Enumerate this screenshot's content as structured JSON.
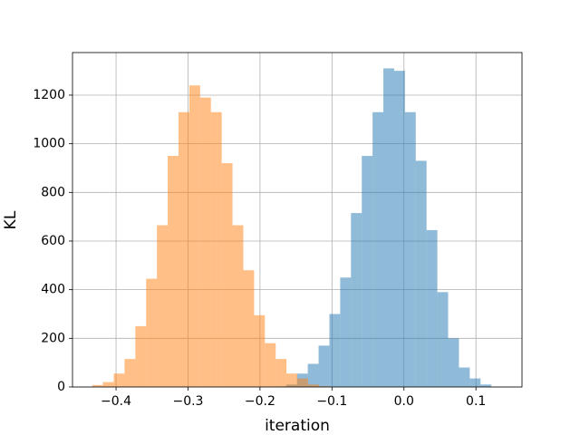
{
  "chart_data": {
    "type": "histogram",
    "xlabel": "iteration",
    "ylabel": "KL",
    "xlim": [
      -0.4605,
      0.164
    ],
    "ylim": [
      0,
      1375
    ],
    "xticks": [
      {
        "value": -0.4,
        "label": "−0.4"
      },
      {
        "value": -0.3,
        "label": "−0.3"
      },
      {
        "value": -0.2,
        "label": "−0.2"
      },
      {
        "value": -0.1,
        "label": "−0.1"
      },
      {
        "value": 0,
        "label": "0.0"
      },
      0.1
    ],
    "yticks": [
      0,
      200,
      400,
      600,
      800,
      1000,
      1200
    ],
    "grid": true,
    "opacity": 0.5,
    "series": [
      {
        "color": "#1f77b4",
        "bins": [
          -0.1786,
          -0.1636,
          -0.1486,
          -0.1336,
          -0.1186,
          -0.1036,
          -0.0886,
          -0.0736,
          -0.0586,
          -0.0436,
          -0.0286,
          -0.0136,
          0.0014,
          0.0164,
          0.0314,
          0.0464,
          0.0614,
          0.0764,
          0.0914,
          0.1064,
          0.1214
        ],
        "values": [
          2,
          10,
          55,
          95,
          170,
          300,
          450,
          715,
          950,
          1130,
          1310,
          1300,
          1130,
          930,
          645,
          390,
          200,
          80,
          35,
          10
        ]
      },
      {
        "color": "#ff7f0e",
        "bins": [
          -0.4332,
          -0.4182,
          -0.4032,
          -0.3882,
          -0.3732,
          -0.3582,
          -0.3432,
          -0.3282,
          -0.3132,
          -0.2982,
          -0.2832,
          -0.2682,
          -0.2532,
          -0.2382,
          -0.2232,
          -0.2082,
          -0.1932,
          -0.1782,
          -0.1632,
          -0.1482,
          -0.1332,
          -0.1182,
          -0.1032
        ],
        "values": [
          8,
          20,
          55,
          115,
          250,
          445,
          665,
          950,
          1130,
          1240,
          1190,
          1130,
          920,
          665,
          480,
          295,
          180,
          115,
          55,
          35,
          10,
          3
        ]
      }
    ]
  }
}
